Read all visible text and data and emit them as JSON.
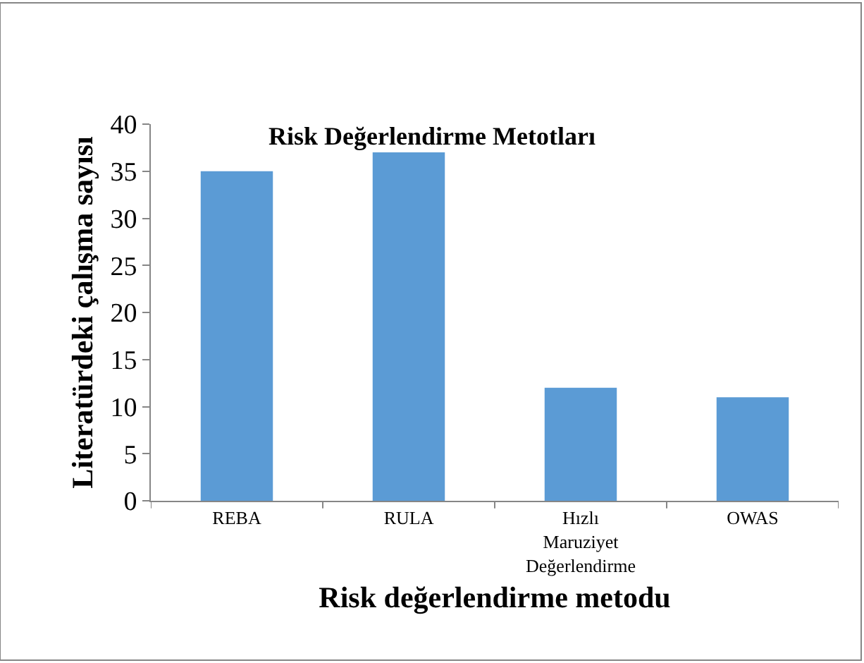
{
  "chart_data": {
    "type": "bar",
    "title": "Risk Değerlendirme Metotları",
    "xlabel": "Risk değerlendirme metodu",
    "ylabel": "Literatürdeki çalışma sayısı",
    "categories": [
      "REBA",
      "RULA",
      "Hızlı Maruziyet Değerlendirme",
      "OWAS"
    ],
    "values": [
      35,
      37,
      12,
      11
    ],
    "color": "#5b9bd5",
    "ylim": [
      0,
      40
    ],
    "yticks": [
      0,
      5,
      10,
      15,
      20,
      25,
      30,
      35,
      40
    ]
  }
}
